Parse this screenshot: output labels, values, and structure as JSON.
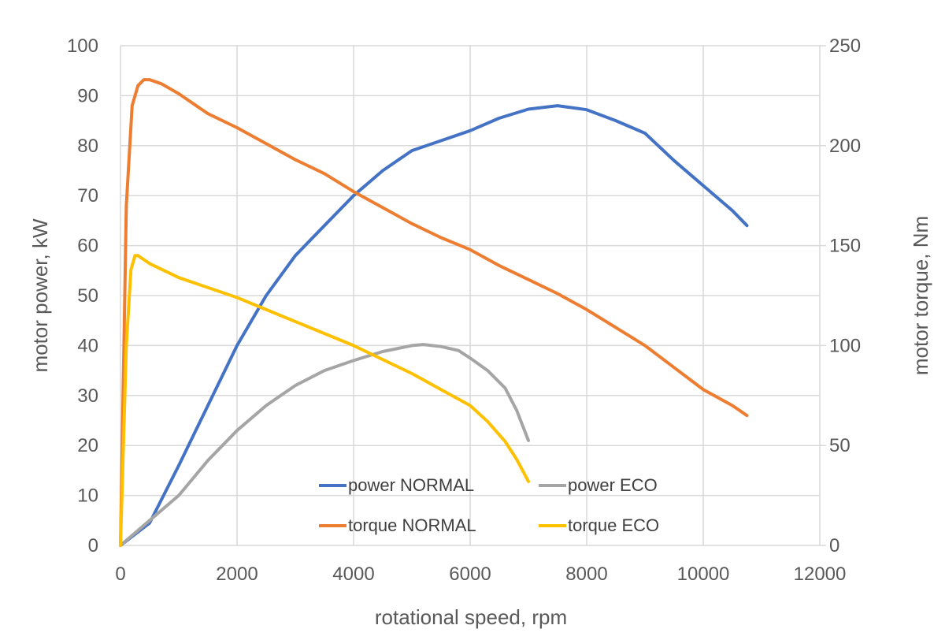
{
  "chart_data": {
    "type": "line",
    "title": "",
    "xlabel": "rotational speed, rpm",
    "ylabel_left": "motor power, kW",
    "ylabel_right": "motor torque, Nm",
    "xlim": [
      0,
      12000
    ],
    "ylim_left": [
      0,
      100
    ],
    "ylim_right": [
      0,
      250
    ],
    "x_ticks": [
      0,
      2000,
      4000,
      6000,
      8000,
      10000,
      12000
    ],
    "y_ticks_left": [
      0,
      10,
      20,
      30,
      40,
      50,
      60,
      70,
      80,
      90,
      100
    ],
    "y_ticks_right": [
      0,
      50,
      100,
      150,
      200,
      250
    ],
    "grid": true,
    "legend_placement": "bottom-center",
    "series": [
      {
        "name": "power NORMAL",
        "axis": "left",
        "color": "#4472c4",
        "points": [
          [
            0,
            0
          ],
          [
            500,
            4.5
          ],
          [
            1000,
            16
          ],
          [
            1500,
            28
          ],
          [
            2000,
            40
          ],
          [
            2500,
            50
          ],
          [
            3000,
            58
          ],
          [
            3500,
            64
          ],
          [
            4000,
            70
          ],
          [
            4500,
            75
          ],
          [
            5000,
            79
          ],
          [
            5500,
            81
          ],
          [
            6000,
            83
          ],
          [
            6500,
            85.5
          ],
          [
            7000,
            87.3
          ],
          [
            7500,
            88
          ],
          [
            8000,
            87.2
          ],
          [
            8500,
            85
          ],
          [
            9000,
            82.5
          ],
          [
            9500,
            77
          ],
          [
            10000,
            72
          ],
          [
            10500,
            67
          ],
          [
            10750,
            64
          ]
        ]
      },
      {
        "name": "power ECO",
        "axis": "left",
        "color": "#a5a5a5",
        "points": [
          [
            0,
            0
          ],
          [
            500,
            5
          ],
          [
            1000,
            10
          ],
          [
            1500,
            17
          ],
          [
            2000,
            23
          ],
          [
            2500,
            28
          ],
          [
            3000,
            32
          ],
          [
            3500,
            35
          ],
          [
            4000,
            37
          ],
          [
            4500,
            38.8
          ],
          [
            5000,
            40
          ],
          [
            5200,
            40.2
          ],
          [
            5500,
            39.8
          ],
          [
            5800,
            39
          ],
          [
            6000,
            37.5
          ],
          [
            6300,
            35
          ],
          [
            6600,
            31.5
          ],
          [
            6800,
            27
          ],
          [
            7000,
            21
          ]
        ]
      },
      {
        "name": "torque NORMAL",
        "axis": "right",
        "color": "#ed7d31",
        "points": [
          [
            0,
            0
          ],
          [
            100,
            170
          ],
          [
            200,
            220
          ],
          [
            300,
            230
          ],
          [
            400,
            233
          ],
          [
            500,
            233
          ],
          [
            700,
            231
          ],
          [
            1000,
            226
          ],
          [
            1500,
            216
          ],
          [
            2000,
            209
          ],
          [
            2500,
            201
          ],
          [
            3000,
            193
          ],
          [
            3500,
            186
          ],
          [
            4000,
            177
          ],
          [
            4500,
            169
          ],
          [
            5000,
            161
          ],
          [
            5500,
            154
          ],
          [
            6000,
            148
          ],
          [
            6500,
            140
          ],
          [
            7000,
            133
          ],
          [
            7500,
            126
          ],
          [
            8000,
            118
          ],
          [
            8500,
            109
          ],
          [
            9000,
            100
          ],
          [
            9500,
            89
          ],
          [
            10000,
            78
          ],
          [
            10500,
            70
          ],
          [
            10750,
            65
          ]
        ]
      },
      {
        "name": "torque ECO",
        "axis": "right",
        "color": "#ffc000",
        "points": [
          [
            0,
            0
          ],
          [
            100,
            100
          ],
          [
            180,
            138
          ],
          [
            250,
            145
          ],
          [
            300,
            145
          ],
          [
            500,
            141
          ],
          [
            1000,
            134
          ],
          [
            2000,
            124
          ],
          [
            3000,
            112
          ],
          [
            4000,
            100
          ],
          [
            5000,
            86
          ],
          [
            5500,
            78
          ],
          [
            6000,
            70
          ],
          [
            6300,
            62
          ],
          [
            6600,
            52
          ],
          [
            6800,
            43
          ],
          [
            7000,
            32
          ]
        ]
      }
    ]
  }
}
